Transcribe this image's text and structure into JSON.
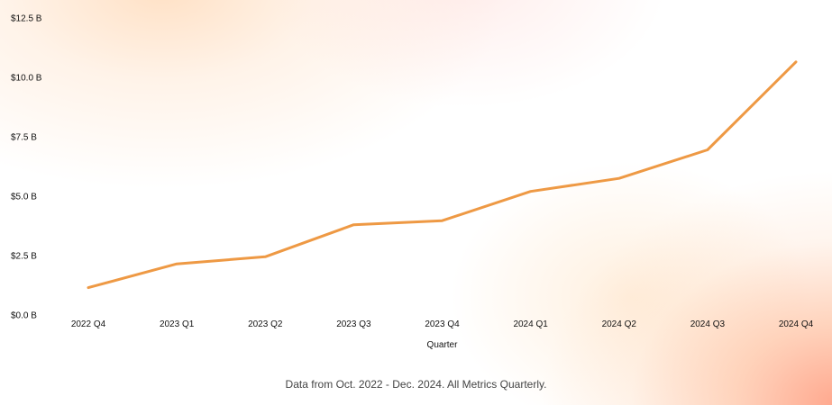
{
  "chart_data": {
    "type": "line",
    "x": [
      "2022 Q4",
      "2023 Q1",
      "2023 Q2",
      "2023 Q3",
      "2023 Q4",
      "2024 Q1",
      "2024 Q2",
      "2024 Q3",
      "2024 Q4"
    ],
    "series": [
      {
        "values": [
          1.15,
          2.15,
          2.45,
          3.8,
          3.97,
          5.2,
          5.75,
          6.95,
          10.65
        ],
        "color": "#EE9944"
      }
    ],
    "xlabel": "Quarter",
    "ylabel": "",
    "ylim": [
      0,
      12.5
    ],
    "yticks": [
      0,
      2.5,
      5.0,
      7.5,
      10.0,
      12.5
    ],
    "ytick_labels": [
      "$0.0 B",
      "$2.5 B",
      "$5.0 B",
      "$7.5 B",
      "$10.0 B",
      "$12.5 B"
    ],
    "grid": false,
    "legend": "none"
  },
  "footer": {
    "note": "Data from Oct. 2022 - Dec. 2024. All Metrics Quarterly."
  }
}
